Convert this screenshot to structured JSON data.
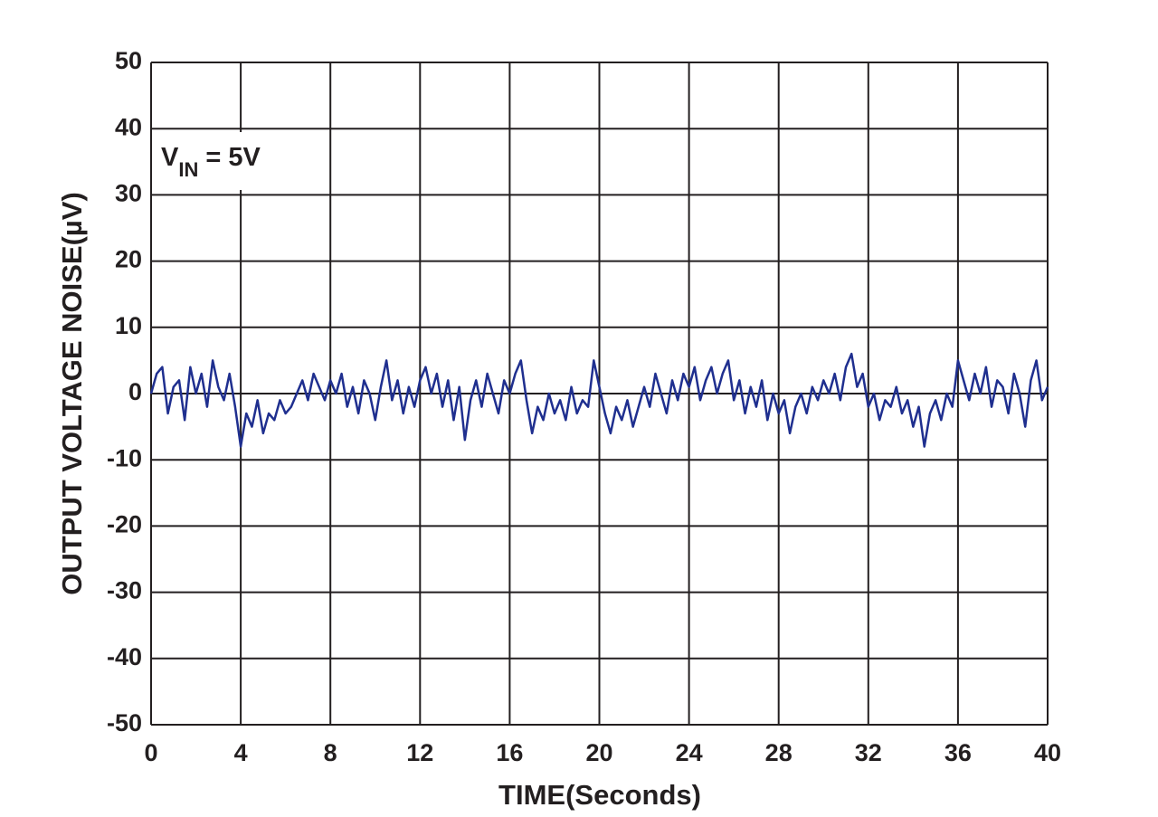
{
  "chart_data": {
    "type": "line",
    "xlabel": "TIME(Seconds)",
    "ylabel": "OUTPUT VOLTAGE NOISE(µV)",
    "annotation": {
      "text": "V",
      "subscript": "IN",
      "suffix": " = 5V"
    },
    "xlim": [
      0,
      40
    ],
    "ylim": [
      -50,
      50
    ],
    "xticks": [
      0,
      4,
      8,
      12,
      16,
      20,
      24,
      28,
      32,
      36,
      40
    ],
    "yticks": [
      -50,
      -40,
      -30,
      -20,
      -10,
      0,
      10,
      20,
      30,
      40,
      50
    ],
    "grid": true,
    "x": [
      0,
      0.25,
      0.5,
      0.75,
      1,
      1.25,
      1.5,
      1.75,
      2,
      2.25,
      2.5,
      2.75,
      3,
      3.25,
      3.5,
      3.75,
      4,
      4.25,
      4.5,
      4.75,
      5,
      5.25,
      5.5,
      5.75,
      6,
      6.25,
      6.5,
      6.75,
      7,
      7.25,
      7.5,
      7.75,
      8,
      8.25,
      8.5,
      8.75,
      9,
      9.25,
      9.5,
      9.75,
      10,
      10.25,
      10.5,
      10.75,
      11,
      11.25,
      11.5,
      11.75,
      12,
      12.25,
      12.5,
      12.75,
      13,
      13.25,
      13.5,
      13.75,
      14,
      14.25,
      14.5,
      14.75,
      15,
      15.25,
      15.5,
      15.75,
      16,
      16.25,
      16.5,
      16.75,
      17,
      17.25,
      17.5,
      17.75,
      18,
      18.25,
      18.5,
      18.75,
      19,
      19.25,
      19.5,
      19.75,
      20,
      20.25,
      20.5,
      20.75,
      21,
      21.25,
      21.5,
      21.75,
      22,
      22.25,
      22.5,
      22.75,
      23,
      23.25,
      23.5,
      23.75,
      24,
      24.25,
      24.5,
      24.75,
      25,
      25.25,
      25.5,
      25.75,
      26,
      26.25,
      26.5,
      26.75,
      27,
      27.25,
      27.5,
      27.75,
      28,
      28.25,
      28.5,
      28.75,
      29,
      29.25,
      29.5,
      29.75,
      30,
      30.25,
      30.5,
      30.75,
      31,
      31.25,
      31.5,
      31.75,
      32,
      32.25,
      32.5,
      32.75,
      33,
      33.25,
      33.5,
      33.75,
      34,
      34.25,
      34.5,
      34.75,
      35,
      35.25,
      35.5,
      35.75,
      36,
      36.25,
      36.5,
      36.75,
      37,
      37.25,
      37.5,
      37.75,
      38,
      38.25,
      38.5,
      38.75,
      39,
      39.25,
      39.5,
      39.75,
      40
    ],
    "series": [
      {
        "color": "#1f2f8f",
        "values": [
          0,
          3,
          4,
          -3,
          1,
          2,
          -4,
          4,
          0,
          3,
          -2,
          5,
          1,
          -1,
          3,
          -2,
          -8,
          -3,
          -5,
          -1,
          -6,
          -3,
          -4,
          -1,
          -3,
          -2,
          0,
          2,
          -1,
          3,
          1,
          -1,
          2,
          0,
          3,
          -2,
          1,
          -3,
          2,
          0,
          -4,
          1,
          5,
          -1,
          2,
          -3,
          1,
          -2,
          2,
          4,
          0,
          3,
          -2,
          2,
          -4,
          1,
          -7,
          -1,
          2,
          -2,
          3,
          0,
          -3,
          2,
          0,
          3,
          5,
          -1,
          -6,
          -2,
          -4,
          0,
          -3,
          -1,
          -4,
          1,
          -3,
          -1,
          -2,
          5,
          1,
          -3,
          -6,
          -2,
          -4,
          -1,
          -5,
          -2,
          1,
          -2,
          3,
          0,
          -3,
          2,
          -1,
          3,
          1,
          4,
          -1,
          2,
          4,
          0,
          3,
          5,
          -1,
          2,
          -3,
          1,
          -2,
          2,
          -4,
          0,
          -3,
          -1,
          -6,
          -2,
          0,
          -3,
          1,
          -1,
          2,
          0,
          3,
          -1,
          4,
          6,
          1,
          3,
          -2,
          0,
          -4,
          -1,
          -2,
          1,
          -3,
          -1,
          -5,
          -2,
          -8,
          -3,
          -1,
          -4,
          0,
          -2,
          5,
          2,
          -1,
          3,
          0,
          4,
          -2,
          2,
          1,
          -3,
          3,
          0,
          -5,
          2,
          5,
          -1,
          1
        ]
      }
    ]
  }
}
